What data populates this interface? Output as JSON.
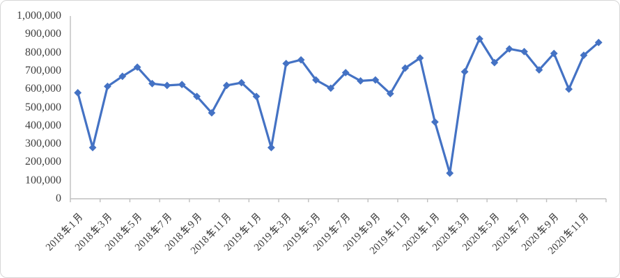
{
  "chart_data": {
    "type": "line",
    "title": "",
    "legend": "none",
    "grid": "off",
    "series_name": "",
    "series_color": "#4472C4",
    "marker": "diamond",
    "ylim": [
      0,
      1000000
    ],
    "y_tick_interval": 100000,
    "categories": [
      "2018年1月",
      "2018年2月",
      "2018年3月",
      "2018年4月",
      "2018年5月",
      "2018年6月",
      "2018年7月",
      "2018年8月",
      "2018年9月",
      "2018年10月",
      "2018年11月",
      "2018年12月",
      "2019年1月",
      "2019年2月",
      "2019年3月",
      "2019年4月",
      "2019年5月",
      "2019年6月",
      "2019年7月",
      "2019年8月",
      "2019年9月",
      "2019年10月",
      "2019年11月",
      "2019年12月",
      "2020年1月",
      "2020年2月",
      "2020年3月",
      "2020年4月",
      "2020年5月",
      "2020年6月",
      "2020年7月",
      "2020年8月",
      "2020年9月",
      "2020年10月",
      "2020年11月",
      "2020年12月"
    ],
    "values": [
      580000,
      280000,
      615000,
      670000,
      720000,
      630000,
      620000,
      625000,
      560000,
      470000,
      620000,
      635000,
      560000,
      280000,
      740000,
      760000,
      650000,
      605000,
      690000,
      645000,
      650000,
      575000,
      715000,
      770000,
      420000,
      140000,
      695000,
      875000,
      745000,
      820000,
      805000,
      705000,
      795000,
      600000,
      785000,
      855000
    ]
  },
  "y_axis": {
    "tick_labels": [
      "1,000,000",
      "900,000",
      "800,000",
      "700,000",
      "600,000",
      "500,000",
      "400,000",
      "300,000",
      "200,000",
      "100,000",
      "0"
    ]
  },
  "x_axis": {
    "tick_labels": [
      "2018年1月",
      "2018年3月",
      "2018年5月",
      "2018年7月",
      "2018年9月",
      "2018年11月",
      "2019年1月",
      "2019年3月",
      "2019年5月",
      "2019年7月",
      "2019年9月",
      "2019年11月",
      "2020年1月",
      "2020年3月",
      "2020年5月",
      "2020年7月",
      "2020年9月",
      "2020年11月"
    ]
  },
  "colors": {
    "line": "#4472C4",
    "axis": "#BFBFBF",
    "text": "#404040",
    "border": "#D6D6D6"
  }
}
